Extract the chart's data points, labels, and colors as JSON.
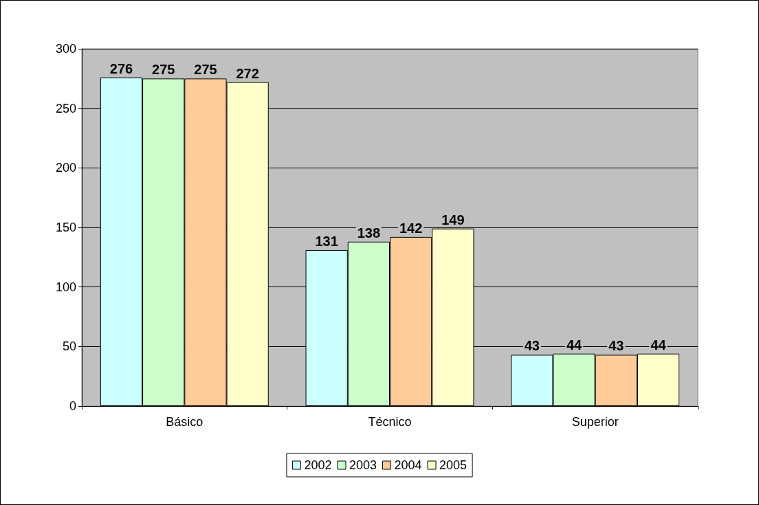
{
  "chart_data": {
    "type": "bar",
    "categories": [
      "Básico",
      "Técnico",
      "Superior"
    ],
    "series": [
      {
        "name": "2002",
        "color": "#ccffff",
        "values": [
          276,
          131,
          43
        ]
      },
      {
        "name": "2003",
        "color": "#ccffcc",
        "values": [
          275,
          138,
          44
        ]
      },
      {
        "name": "2004",
        "color": "#ffcc99",
        "values": [
          275,
          142,
          43
        ]
      },
      {
        "name": "2005",
        "color": "#ffffcc",
        "values": [
          272,
          149,
          44
        ]
      }
    ],
    "ylim": [
      0,
      300
    ],
    "yticks": [
      0,
      50,
      100,
      150,
      200,
      250,
      300
    ],
    "grid": "y",
    "legend": "bottom",
    "data_labels": true
  }
}
